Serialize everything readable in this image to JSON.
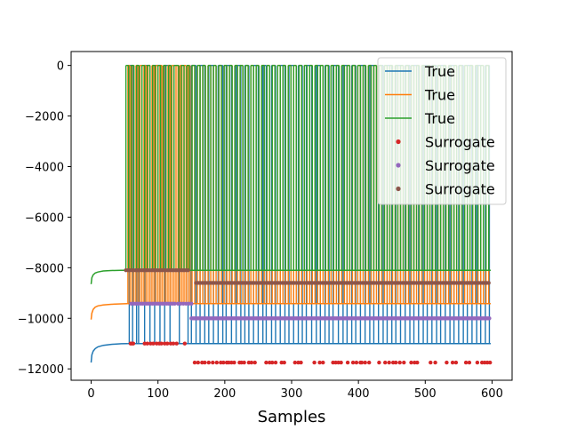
{
  "chart_data": {
    "type": "line",
    "title": "",
    "xlabel": "Samples",
    "ylabel": "",
    "xlim": [
      -30,
      630
    ],
    "ylim": [
      -12450,
      550
    ],
    "x_ticks": [
      0,
      100,
      200,
      300,
      400,
      500,
      600
    ],
    "x_tick_labels": [
      "0",
      "100",
      "200",
      "300",
      "400",
      "500",
      "600"
    ],
    "y_ticks": [
      0,
      -2000,
      -4000,
      -6000,
      -8000,
      -10000,
      -12000
    ],
    "y_tick_labels": [
      "0",
      "−2000",
      "−4000",
      "−6000",
      "−8000",
      "−10000",
      "−12000"
    ],
    "grid": false,
    "legend_position": "top-right",
    "legend": [
      {
        "label": "True",
        "kind": "line",
        "color": "#1f77b4"
      },
      {
        "label": "True",
        "kind": "line",
        "color": "#ff7f0e"
      },
      {
        "label": "True",
        "kind": "line",
        "color": "#2ca02c"
      },
      {
        "label": "Surrogate",
        "kind": "marker",
        "color": "#d62728"
      },
      {
        "label": "Surrogate",
        "kind": "marker",
        "color": "#9467bd"
      },
      {
        "label": "Surrogate",
        "kind": "marker",
        "color": "#8c564b"
      }
    ],
    "series": [
      {
        "kind": "line",
        "color": "#1f77b4",
        "start_curve": {
          "x": [
            0,
            1,
            3,
            6,
            10,
            18,
            30,
            45,
            55
          ],
          "y": [
            -11750,
            -11450,
            -11300,
            -11200,
            -11130,
            -11070,
            -11030,
            -11005,
            -11000
          ]
        },
        "low_level": -11000,
        "high_level": 0,
        "spike_x": [
          57,
          62,
          68,
          71,
          80,
          88,
          95,
          103,
          110,
          118,
          132,
          145,
          150,
          157,
          163,
          170,
          176,
          183,
          190,
          197,
          202,
          210,
          217,
          224,
          230,
          236,
          243,
          250,
          257,
          262,
          270,
          276,
          283,
          290,
          296,
          303,
          310,
          316,
          322,
          330,
          337,
          343,
          350,
          356,
          362,
          370,
          377,
          383,
          390,
          396,
          403,
          410,
          417,
          423,
          430,
          437,
          443,
          450,
          456,
          463,
          470,
          477,
          483,
          490,
          497,
          503,
          510,
          517,
          523,
          530,
          537,
          543,
          550,
          557,
          563,
          570,
          577,
          583,
          590,
          596
        ]
      },
      {
        "kind": "line",
        "color": "#ff7f0e",
        "start_curve": {
          "x": [
            0,
            1,
            3,
            6,
            10,
            18,
            30,
            45,
            55
          ],
          "y": [
            -10050,
            -9800,
            -9650,
            -9560,
            -9510,
            -9470,
            -9445,
            -9430,
            -9420
          ]
        },
        "low_level": -9420,
        "high_level": 0,
        "spike_x": [
          55,
          58,
          61,
          64,
          67,
          70,
          73,
          76,
          79,
          82,
          85,
          88,
          91,
          94,
          97,
          100,
          103,
          106,
          109,
          112,
          115,
          118,
          121,
          124,
          127,
          130,
          133,
          136,
          139,
          142,
          145,
          148,
          151,
          155,
          159,
          163,
          167,
          171,
          175,
          179,
          183,
          187,
          191,
          195,
          199,
          203,
          207,
          211,
          215,
          219,
          223,
          227,
          231,
          235,
          239,
          243,
          247,
          251,
          255,
          259,
          263,
          267,
          271,
          275,
          279,
          283,
          287,
          291,
          295,
          299,
          303,
          307,
          311,
          315,
          319,
          323,
          327,
          331,
          335,
          339,
          343,
          347,
          351,
          355,
          359,
          363,
          367,
          371,
          375,
          379,
          383,
          387,
          391,
          395,
          399,
          403,
          407,
          411,
          415,
          419,
          423,
          427,
          431,
          435,
          439,
          443,
          447,
          451,
          455,
          459,
          463,
          467,
          471,
          475,
          479,
          483,
          487,
          491,
          495,
          499,
          503,
          507,
          511,
          515,
          519,
          523,
          527,
          531,
          535,
          539,
          543,
          547,
          551,
          555,
          559,
          563,
          567,
          571,
          575,
          579,
          583,
          587,
          591,
          595
        ]
      },
      {
        "kind": "line",
        "color": "#2ca02c",
        "start_curve": {
          "x": [
            0,
            1,
            3,
            6,
            10,
            18,
            30,
            45,
            52
          ],
          "y": [
            -8650,
            -8400,
            -8280,
            -8210,
            -8170,
            -8130,
            -8110,
            -8100,
            -8100
          ]
        },
        "low_level": -8100,
        "high_level": 0,
        "spike_x": [
          52,
          56,
          60,
          64,
          68,
          72,
          76,
          80,
          84,
          88,
          92,
          96,
          100,
          104,
          108,
          112,
          116,
          120,
          124,
          131,
          135,
          139,
          143,
          147,
          151,
          155,
          159,
          163,
          167,
          171,
          175,
          179,
          183,
          187,
          191,
          195,
          199,
          203,
          207,
          211,
          215,
          219,
          223,
          227,
          231,
          235,
          239,
          243,
          247,
          251,
          255,
          259,
          263,
          267,
          271,
          275,
          279,
          283,
          287,
          291,
          295,
          299,
          303,
          307,
          311,
          315,
          319,
          323,
          327,
          331,
          335,
          339,
          343,
          347,
          351,
          355,
          359,
          363,
          367,
          371,
          375,
          379,
          383,
          387,
          391,
          395,
          399,
          403,
          407,
          411,
          415,
          419,
          423,
          427,
          431,
          435,
          439,
          443,
          447,
          451,
          455,
          459,
          463,
          467,
          471,
          475,
          479,
          483,
          487,
          491,
          495,
          499,
          503,
          507,
          511,
          515,
          519,
          523,
          527,
          531,
          535,
          539,
          543,
          547,
          551,
          555,
          559,
          563,
          567,
          571,
          575,
          579,
          583,
          587,
          591,
          595
        ]
      },
      {
        "kind": "scatter",
        "color": "#d62728",
        "y_level": -11000,
        "x": [
          59,
          61,
          63,
          80,
          84,
          89,
          93,
          98,
          102,
          105,
          110,
          114,
          119,
          123,
          128,
          140
        ]
      },
      {
        "kind": "scatter",
        "color": "#d62728",
        "y_level": -11750,
        "x": [
          155,
          160,
          166,
          170,
          176,
          182,
          188,
          194,
          198,
          203,
          206,
          210,
          214,
          222,
          225,
          229,
          236,
          240,
          245,
          262,
          267,
          271,
          276,
          285,
          289,
          305,
          310,
          314,
          334,
          342,
          347,
          362,
          366,
          370,
          374,
          384,
          392,
          397,
          403,
          405,
          410,
          416,
          431,
          440,
          446,
          452,
          456,
          462,
          468,
          479,
          484,
          488,
          508,
          515,
          532,
          541,
          546,
          561,
          566,
          578,
          585,
          589,
          593,
          597
        ]
      },
      {
        "kind": "scatter",
        "color": "#9467bd",
        "y_level": -9420,
        "x": [
          60,
          64,
          67,
          70,
          74,
          77,
          80,
          83,
          86,
          89,
          92,
          95,
          98,
          101,
          104,
          107,
          110,
          113,
          116,
          119,
          122,
          125,
          130,
          134,
          138,
          142,
          146,
          150
        ]
      },
      {
        "kind": "scatter",
        "color": "#9467bd",
        "y_level": -10000,
        "x": [
          150,
          152,
          154,
          156,
          158,
          160,
          162,
          164,
          166,
          168,
          170,
          172,
          174,
          176,
          178,
          180,
          182,
          184,
          186,
          188,
          190,
          192,
          194,
          196,
          198,
          200,
          202,
          204,
          206,
          208,
          210,
          212,
          214,
          216,
          218,
          220,
          222,
          224,
          226,
          228,
          230,
          232,
          234,
          236,
          238,
          240,
          242,
          244,
          246,
          248,
          250,
          252,
          254,
          256,
          258,
          260,
          262,
          264,
          266,
          268,
          270,
          272,
          274,
          276,
          278,
          280,
          282,
          284,
          286,
          288,
          290,
          292,
          294,
          296,
          298,
          300,
          302,
          304,
          306,
          308,
          310,
          312,
          314,
          316,
          318,
          320,
          322,
          324,
          326,
          328,
          330,
          332,
          334,
          336,
          338,
          340,
          342,
          344,
          346,
          348,
          350,
          352,
          354,
          356,
          358,
          360,
          362,
          364,
          366,
          368,
          370,
          372,
          374,
          376,
          378,
          380,
          382,
          384,
          386,
          388,
          390,
          392,
          394,
          396,
          398,
          400,
          402,
          404,
          406,
          408,
          410,
          412,
          414,
          416,
          418,
          420,
          422,
          424,
          426,
          428,
          430,
          432,
          434,
          436,
          438,
          440,
          442,
          444,
          446,
          448,
          450,
          452,
          454,
          456,
          458,
          460,
          462,
          464,
          466,
          468,
          470,
          472,
          474,
          476,
          478,
          480,
          482,
          484,
          486,
          488,
          490,
          492,
          494,
          496,
          498,
          500,
          502,
          504,
          506,
          508,
          510,
          512,
          514,
          516,
          518,
          520,
          522,
          524,
          526,
          528,
          530,
          532,
          534,
          536,
          538,
          540,
          542,
          544,
          546,
          548,
          550,
          552,
          554,
          556,
          558,
          560,
          562,
          564,
          566,
          568,
          570,
          572,
          574,
          576,
          578,
          580,
          582,
          584,
          586,
          588,
          590,
          592,
          594,
          596
        ]
      },
      {
        "kind": "scatter",
        "color": "#8c564b",
        "y_level": -8100,
        "x": [
          52,
          55,
          58,
          61,
          64,
          67,
          70,
          73,
          76,
          79,
          82,
          85,
          88,
          91,
          94,
          97,
          100,
          103,
          106,
          109,
          112,
          115,
          118,
          121,
          124,
          127,
          130,
          133,
          136,
          139,
          142,
          145
        ]
      },
      {
        "kind": "scatter",
        "color": "#8c564b",
        "y_level": -8600,
        "x": [
          157,
          160,
          163,
          166,
          169,
          172,
          175,
          178,
          181,
          184,
          187,
          190,
          193,
          196,
          199,
          202,
          205,
          208,
          211,
          214,
          217,
          220,
          223,
          226,
          229,
          232,
          235,
          238,
          241,
          244,
          247,
          250,
          253,
          256,
          259,
          262,
          265,
          268,
          271,
          274,
          277,
          280,
          283,
          286,
          289,
          292,
          295,
          298,
          301,
          304,
          307,
          310,
          313,
          316,
          319,
          322,
          325,
          328,
          331,
          334,
          337,
          340,
          343,
          346,
          349,
          352,
          355,
          358,
          361,
          364,
          367,
          370,
          373,
          376,
          379,
          382,
          385,
          388,
          391,
          394,
          397,
          400,
          403,
          406,
          409,
          412,
          415,
          418,
          421,
          424,
          427,
          430,
          433,
          436,
          439,
          442,
          445,
          448,
          451,
          454,
          457,
          460,
          463,
          466,
          469,
          472,
          475,
          478,
          481,
          484,
          487,
          490,
          493,
          496,
          499,
          502,
          505,
          508,
          511,
          514,
          517,
          520,
          523,
          526,
          529,
          532,
          535,
          538,
          541,
          544,
          547,
          550,
          553,
          556,
          559,
          562,
          565,
          568,
          571,
          574,
          577,
          580,
          583,
          586,
          589,
          592,
          595
        ]
      }
    ]
  }
}
